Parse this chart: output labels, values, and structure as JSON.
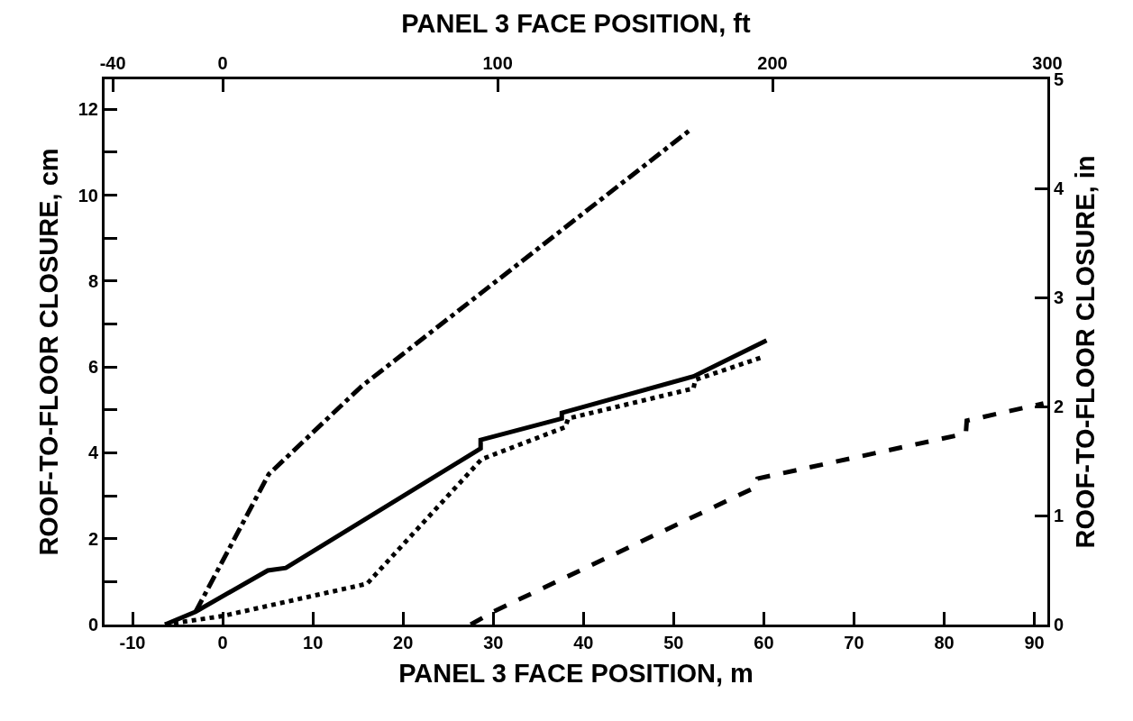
{
  "chart_data": {
    "type": "line",
    "xlabel": "PANEL 3 FACE POSITION, m",
    "x2label": "PANEL 3 FACE POSITION, ft",
    "ylabel": "ROOF-TO-FLOOR CLOSURE, cm",
    "y2label": "ROOF-TO-FLOOR CLOSURE, in",
    "xlim": [
      -13.1,
      91.44
    ],
    "xticks": [
      -10,
      0,
      10,
      20,
      30,
      40,
      50,
      60,
      70,
      80,
      90
    ],
    "x2lim": [
      -43,
      300
    ],
    "x2ticks": [
      -40,
      0,
      100,
      200,
      300
    ],
    "ylim": [
      0,
      12.7
    ],
    "yticks": [
      0,
      {
        "value": 1,
        "label": null
      },
      2,
      {
        "value": 3,
        "label": null
      },
      4,
      {
        "value": 5,
        "label": null
      },
      6,
      {
        "value": 7,
        "label": null
      },
      8,
      {
        "value": 9,
        "label": null
      },
      10,
      {
        "value": 11,
        "label": null
      },
      12
    ],
    "y2lim": [
      0,
      5
    ],
    "y2ticks": [
      0,
      1,
      2,
      3,
      4,
      5
    ],
    "series": [
      {
        "color": "#000000",
        "line_style": "dashdot",
        "x": [
          -3,
          5.1,
          15.4,
          51.7
        ],
        "values": [
          0.3,
          3.5,
          5.55,
          11.5
        ]
      },
      {
        "color": "#000000",
        "line_style": "solid",
        "x": [
          -6.4,
          -3,
          5,
          7,
          28.6,
          28.6,
          37.6,
          37.6,
          52.2,
          60.3
        ],
        "values": [
          0,
          0.3,
          1.26,
          1.32,
          4.1,
          4.3,
          4.8,
          4.93,
          5.78,
          6.62
        ]
      },
      {
        "color": "#000000",
        "line_style": "dotted",
        "x": [
          -6.4,
          0,
          16,
          28.7,
          38,
          38.3,
          52.2,
          52.4,
          60
        ],
        "values": [
          0,
          0.2,
          0.95,
          3.85,
          4.6,
          4.8,
          5.5,
          5.7,
          6.24
        ]
      },
      {
        "color": "#000000",
        "line_style": "dashed",
        "x": [
          27.5,
          30,
          59.1,
          59.3,
          82.4,
          82.5,
          91
        ],
        "values": [
          0,
          0.3,
          3.2,
          3.4,
          4.45,
          4.75,
          5.15
        ]
      }
    ]
  }
}
